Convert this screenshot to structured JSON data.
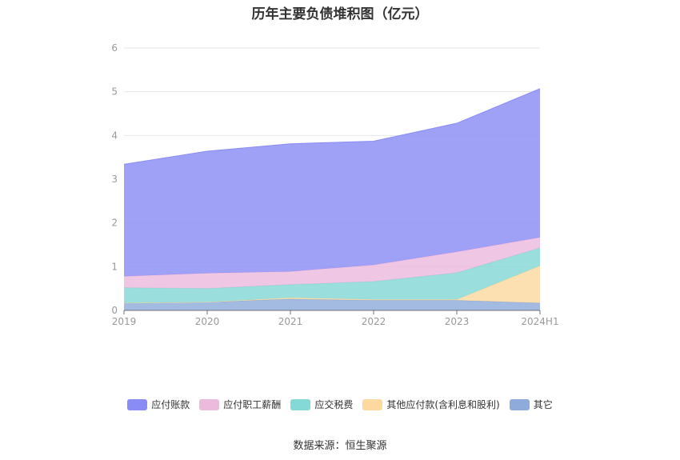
{
  "title": "历年主要负债堆积图（亿元）",
  "source_text": "数据来源：恒生聚源",
  "chart_data": {
    "type": "area",
    "stacked": true,
    "title": "历年主要负债堆积图（亿元）",
    "categories": [
      "2019",
      "2020",
      "2021",
      "2022",
      "2023",
      "2024H1"
    ],
    "ylim": [
      0,
      6
    ],
    "yticks": [
      "0",
      "1",
      "2",
      "3",
      "4",
      "5",
      "6"
    ],
    "grid": true,
    "legend_position": "bottom",
    "series": [
      {
        "name": "其它",
        "color": "#8fabdb",
        "values": [
          0.17,
          0.19,
          0.26,
          0.23,
          0.23,
          0.17
        ]
      },
      {
        "name": "其他应付款(含利息和股利)",
        "color": "#fdd9a0",
        "values": [
          0.0,
          0.0,
          0.03,
          0.02,
          0.02,
          0.85
        ]
      },
      {
        "name": "应交税费",
        "color": "#84d8d6",
        "values": [
          0.35,
          0.31,
          0.3,
          0.41,
          0.61,
          0.41
        ]
      },
      {
        "name": "应付职工薪酬",
        "color": "#ecbadd",
        "values": [
          0.26,
          0.35,
          0.3,
          0.38,
          0.48,
          0.24
        ]
      },
      {
        "name": "应付账款",
        "color": "#8a8cf5",
        "values": [
          2.56,
          2.79,
          2.92,
          2.83,
          2.94,
          3.4
        ]
      }
    ]
  },
  "legend": [
    {
      "label": "应付账款",
      "color": "#8a8cf5"
    },
    {
      "label": "应付职工薪酬",
      "color": "#ecbadd"
    },
    {
      "label": "应交税费",
      "color": "#84d8d6"
    },
    {
      "label": "其他应付款(含利息和股利)",
      "color": "#fdd9a0"
    },
    {
      "label": "其它",
      "color": "#8fabdb"
    }
  ]
}
